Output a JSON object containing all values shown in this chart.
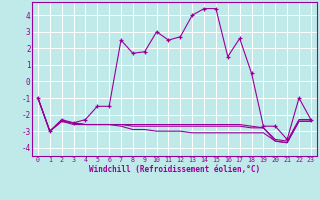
{
  "background_color": "#c0eaea",
  "grid_color": "#ffffff",
  "line_color": "#990099",
  "xlim_min": -0.5,
  "xlim_max": 23.5,
  "ylim_min": -4.5,
  "ylim_max": 4.8,
  "yticks": [
    -4,
    -3,
    -2,
    -1,
    0,
    1,
    2,
    3,
    4
  ],
  "xticks": [
    0,
    1,
    2,
    3,
    4,
    5,
    6,
    7,
    8,
    9,
    10,
    11,
    12,
    13,
    14,
    15,
    16,
    17,
    18,
    19,
    20,
    21,
    22,
    23
  ],
  "xlabel": "Windchill (Refroidissement éolien,°C)",
  "main_x": [
    0,
    1,
    2,
    3,
    4,
    5,
    6,
    7,
    8,
    9,
    10,
    11,
    12,
    13,
    14,
    15,
    16,
    17,
    18,
    19,
    20,
    21,
    22,
    23
  ],
  "main_y": [
    -1.0,
    -3.0,
    -2.3,
    -2.5,
    -2.3,
    -1.5,
    -1.5,
    2.5,
    1.7,
    1.8,
    3.0,
    2.5,
    2.7,
    4.0,
    4.4,
    4.4,
    1.5,
    2.6,
    0.5,
    -2.7,
    -2.7,
    -3.5,
    -1.0,
    -2.3
  ],
  "flat1_x": [
    0,
    1,
    2,
    3,
    4,
    5,
    6,
    7,
    8,
    9,
    10,
    11,
    12,
    13,
    14,
    15,
    16,
    17,
    18,
    19,
    20,
    21,
    22,
    23
  ],
  "flat1_y": [
    -1.0,
    -3.0,
    -2.4,
    -2.5,
    -2.6,
    -2.6,
    -2.6,
    -2.6,
    -2.6,
    -2.6,
    -2.6,
    -2.6,
    -2.6,
    -2.6,
    -2.6,
    -2.6,
    -2.6,
    -2.6,
    -2.7,
    -2.8,
    -3.5,
    -3.6,
    -2.3,
    -2.3
  ],
  "flat2_x": [
    0,
    1,
    2,
    3,
    4,
    5,
    6,
    7,
    8,
    9,
    10,
    11,
    12,
    13,
    14,
    15,
    16,
    17,
    18,
    19,
    20,
    21,
    22,
    23
  ],
  "flat2_y": [
    -1.0,
    -3.0,
    -2.4,
    -2.5,
    -2.6,
    -2.6,
    -2.6,
    -2.6,
    -2.7,
    -2.7,
    -2.7,
    -2.7,
    -2.7,
    -2.7,
    -2.7,
    -2.7,
    -2.7,
    -2.7,
    -2.8,
    -2.8,
    -3.6,
    -3.7,
    -2.4,
    -2.4
  ],
  "flat3_x": [
    0,
    1,
    2,
    3,
    4,
    5,
    6,
    7,
    8,
    9,
    10,
    11,
    12,
    13,
    14,
    15,
    16,
    17,
    18,
    19,
    20,
    21,
    22,
    23
  ],
  "flat3_y": [
    -1.0,
    -3.0,
    -2.4,
    -2.6,
    -2.6,
    -2.6,
    -2.6,
    -2.7,
    -2.9,
    -2.9,
    -3.0,
    -3.0,
    -3.0,
    -3.1,
    -3.1,
    -3.1,
    -3.1,
    -3.1,
    -3.1,
    -3.1,
    -3.6,
    -3.7,
    -2.4,
    -2.4
  ]
}
